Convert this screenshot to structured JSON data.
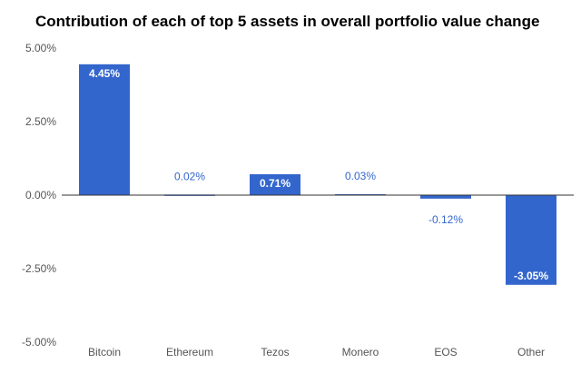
{
  "chart_data": {
    "type": "bar",
    "title": "Contribution of each of top 5 assets in overall portfolio value change",
    "categories": [
      "Bitcoin",
      "Ethereum",
      "Tezos",
      "Monero",
      "EOS",
      "Other"
    ],
    "values": [
      4.45,
      0.02,
      0.71,
      0.03,
      -0.12,
      -3.05
    ],
    "value_labels": [
      "4.45%",
      "0.02%",
      "0.71%",
      "0.03%",
      "-0.12%",
      "-3.05%"
    ],
    "yticks": [
      5,
      2.5,
      0,
      -2.5,
      -5
    ],
    "ytick_labels": [
      "5.00%",
      "2.50%",
      "0.00%",
      "-2.50%",
      "-5.00%"
    ],
    "ylim": [
      -5,
      5
    ],
    "xlabel": "",
    "ylabel": "",
    "grid": false,
    "bar_color": "#3366cc"
  }
}
